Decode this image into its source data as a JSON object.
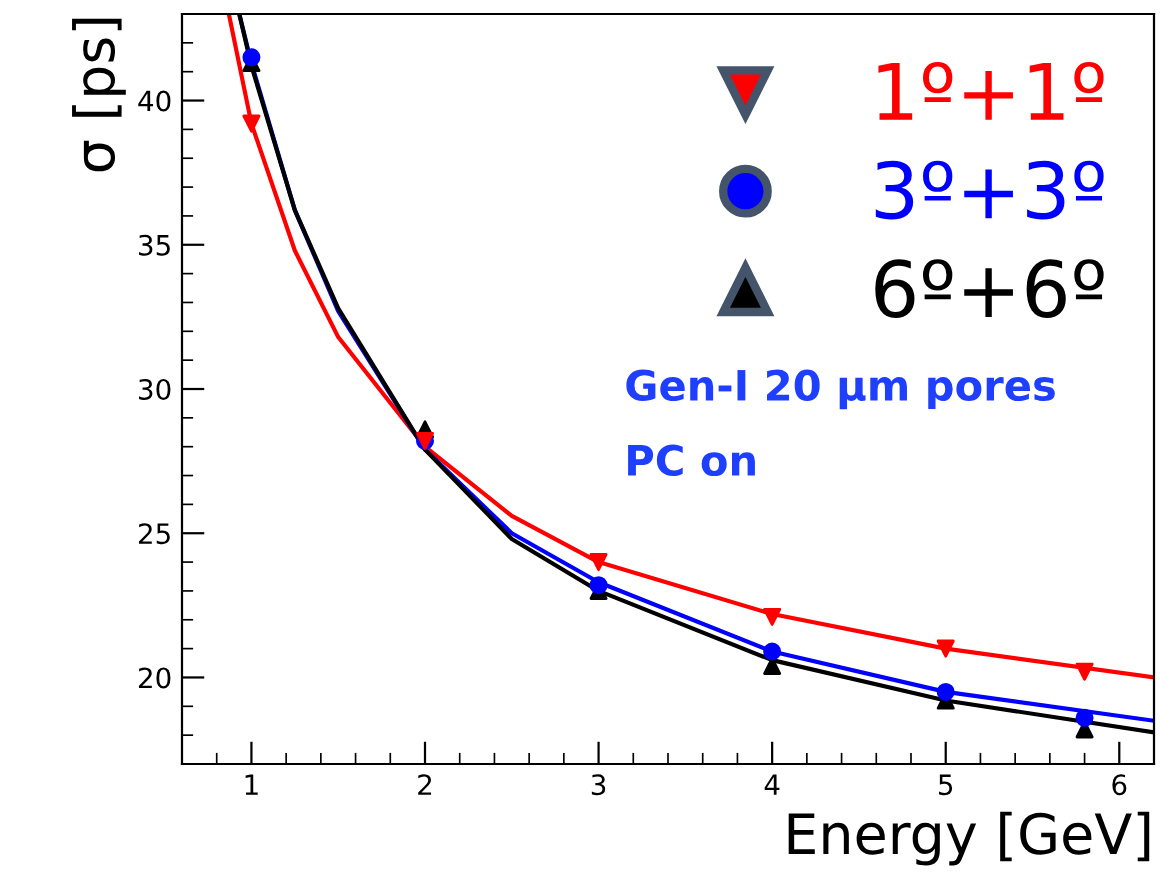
{
  "chart_data": {
    "type": "scatter",
    "xlabel": "Energy [GeV]",
    "ylabel": "σ [ps]",
    "xlim": [
      0.6,
      6.2
    ],
    "ylim": [
      17,
      43
    ],
    "xticks": [
      1,
      2,
      3,
      4,
      5,
      6
    ],
    "yticks": [
      20,
      25,
      30,
      35,
      40
    ],
    "grid": false,
    "legend": "top right",
    "annotations": [
      "Gen-I 20 μm pores",
      "PC on"
    ],
    "series": [
      {
        "name": "1º+1º",
        "marker": "triangle_down",
        "color": "#ff0000",
        "x": [
          1,
          2,
          3,
          4,
          5,
          5.8
        ],
        "values": [
          39.2,
          28.2,
          24.0,
          22.1,
          21.0,
          20.2
        ]
      },
      {
        "name": "3º+3º",
        "marker": "circle",
        "color": "#0000ff",
        "x": [
          1,
          2,
          3,
          4,
          5,
          5.8
        ],
        "values": [
          41.5,
          28.2,
          23.2,
          20.9,
          19.5,
          18.6
        ]
      },
      {
        "name": "6º+6º",
        "marker": "triangle",
        "color": "#000000",
        "x": [
          1,
          2,
          3,
          4,
          5,
          5.8
        ],
        "values": [
          41.3,
          28.6,
          23.0,
          20.4,
          19.2,
          18.2
        ]
      },
      {
        "type": "line",
        "color": "#ff0000",
        "x": [
          0.87,
          1,
          1.25,
          1.5,
          2,
          2.5,
          3,
          4,
          5,
          6.2
        ],
        "values": [
          43,
          39.2,
          34.8,
          31.8,
          28.0,
          25.6,
          24.0,
          22.2,
          21.0,
          20.0
        ]
      },
      {
        "type": "line",
        "color": "#0000ff",
        "x": [
          0.93,
          1,
          1.25,
          1.5,
          2,
          2.5,
          3,
          4,
          5,
          6.2
        ],
        "values": [
          43,
          41.3,
          36.2,
          32.7,
          27.9,
          25.0,
          23.3,
          20.9,
          19.5,
          18.5
        ]
      },
      {
        "type": "line",
        "color": "#000000",
        "x": [
          0.93,
          1,
          1.25,
          1.5,
          2,
          2.5,
          3,
          4,
          5,
          6.2
        ],
        "values": [
          43,
          41.2,
          36.2,
          32.8,
          27.9,
          24.8,
          23.0,
          20.6,
          19.2,
          18.1
        ]
      }
    ]
  }
}
